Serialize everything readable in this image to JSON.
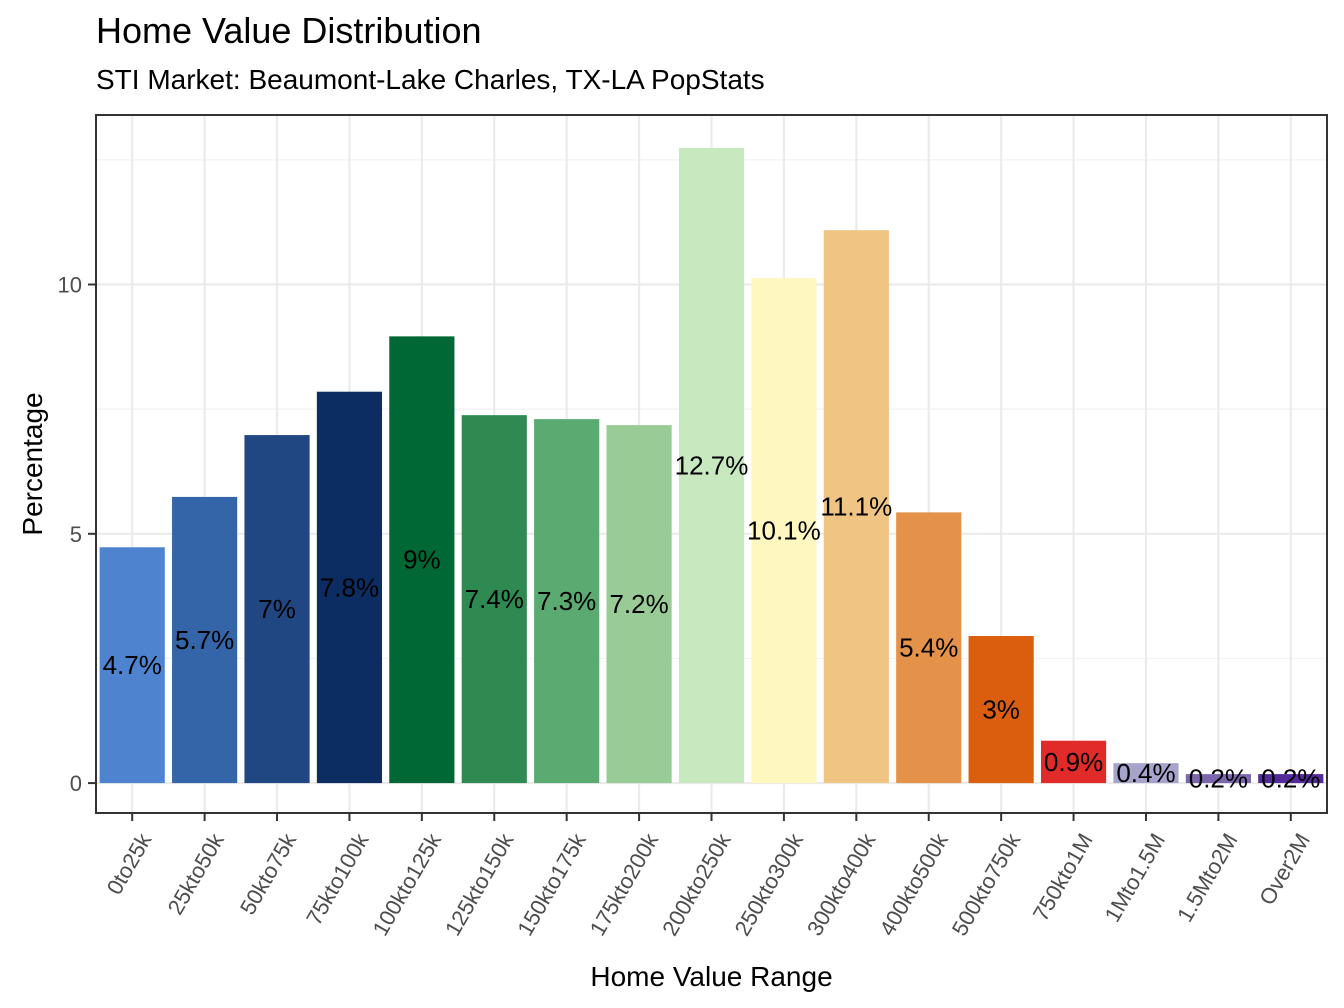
{
  "chart_data": {
    "type": "bar",
    "title": "Home Value Distribution",
    "subtitle": "STI Market: Beaumont-Lake Charles, TX-LA PopStats",
    "xlabel": "Home Value Range",
    "ylabel": "Percentage",
    "ylim": [
      -0.6,
      13.4
    ],
    "yticks": [
      0,
      5,
      10
    ],
    "ytick_labels": [
      "0",
      "5",
      "10"
    ],
    "grid": true,
    "categories": [
      "0to25k",
      "25kto50k",
      "50kto75k",
      "75kto100k",
      "100kto125k",
      "125kto150k",
      "150kto175k",
      "175kto200k",
      "200kto250k",
      "250kto300k",
      "300kto400k",
      "400kto500k",
      "500kto750k",
      "750kto1M",
      "1Mto1.5M",
      "1.5Mto2M",
      "Over2M"
    ],
    "values": [
      4.73,
      5.74,
      6.98,
      7.85,
      8.96,
      7.38,
      7.3,
      7.18,
      12.74,
      10.13,
      11.09,
      5.43,
      2.95,
      0.85,
      0.4,
      0.18,
      0.18
    ],
    "labels": [
      "4.7%",
      "5.7%",
      "7%",
      "7.8%",
      "9%",
      "7.4%",
      "7.3%",
      "7.2%",
      "12.7%",
      "10.1%",
      "11.1%",
      "5.4%",
      "3%",
      "0.9%",
      "0.4%",
      "0.2%",
      "0.2%"
    ],
    "colors": [
      "#4E84CF",
      "#3465A8",
      "#204782",
      "#0C2D62",
      "#006834",
      "#2E8A51",
      "#5AAA71",
      "#98CB96",
      "#C8E8C0",
      "#FFF7BF",
      "#F0C483",
      "#E4924A",
      "#DA5E0D",
      "#E12B28",
      "#A6A4CC",
      "#7C67AE",
      "#54299A"
    ]
  }
}
